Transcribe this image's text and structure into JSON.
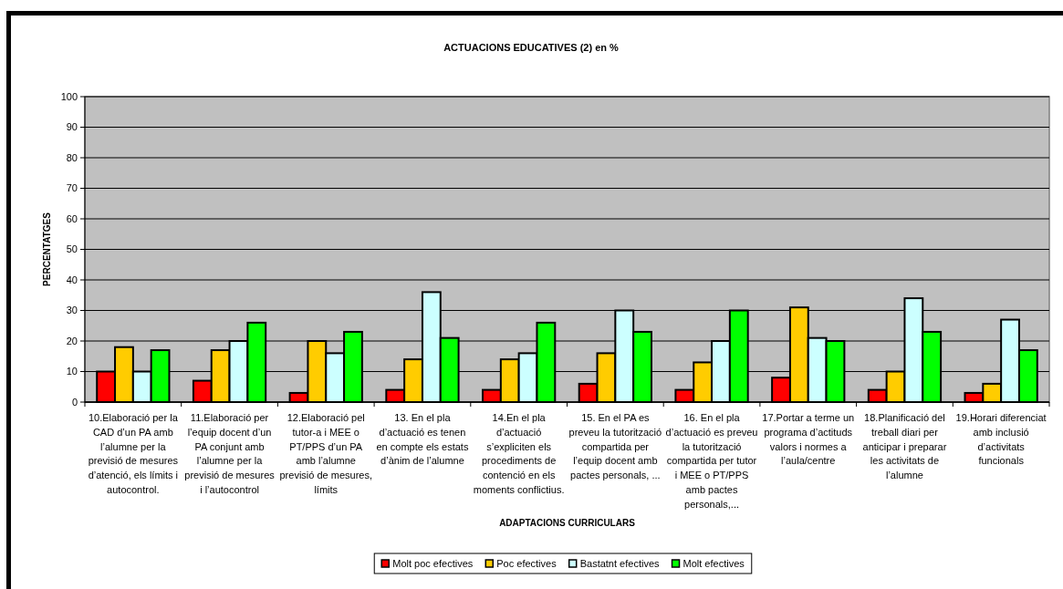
{
  "chart_data": {
    "type": "bar",
    "title": "ACTUACIONS EDUCATIVES (2) en %",
    "xlabel": "ADAPTACIONS CURRICULARS",
    "ylabel": "PERCENTATGES",
    "categories": [
      "10.Elaboració per la CAD d’un PA amb l’alumne per la previsió de mesures d’atenció, els límits i autocontrol.",
      "11.Elaboració per l’equip docent d’un PA conjunt amb l’alumne per la previsió de mesures i l’autocontrol",
      "12.Elaboració pel tutor-a i MEE o PT/PPS d’un PA amb l’alumne previsió de mesures, límits",
      "13. En el pla d’actuació es tenen en compte els estats d’ànim de l’alumne",
      "14.En el pla d’actuació s’expliciten els procediments de contenció en els moments conflictius.",
      "15. En el PA es preveu la tutorització compartida per l’equip docent amb pactes personals, ...",
      "16. En el pla d’actuació es preveu la tutorització compartida per tutor i MEE o PT/PPS amb pactes personals,...",
      "17.Portar a terme un programa d’actituds valors i normes a l’aula/centre",
      "18.Planificació del treball diari per anticipar i preparar les activitats de l’alumne",
      "19.Horari diferenciat amb inclusió d’activitats funcionals"
    ],
    "series": [
      {
        "name": "Molt poc efectives",
        "color": "#ff0000",
        "values": [
          10,
          7,
          3,
          4,
          4,
          6,
          4,
          8,
          4,
          3
        ]
      },
      {
        "name": "Poc efectives",
        "color": "#ffcc00",
        "values": [
          18,
          17,
          20,
          14,
          14,
          16,
          13,
          31,
          10,
          6
        ]
      },
      {
        "name": "Bastatnt efectives",
        "color": "#ccffff",
        "values": [
          10,
          20,
          16,
          36,
          16,
          30,
          20,
          21,
          34,
          27
        ]
      },
      {
        "name": "Molt efectives",
        "color": "#00ff00",
        "values": [
          17,
          26,
          23,
          21,
          26,
          23,
          30,
          20,
          23,
          17
        ]
      }
    ],
    "ylim": [
      0,
      100
    ],
    "yticks": [
      0,
      10,
      20,
      30,
      40,
      50,
      60,
      70,
      80,
      90,
      100
    ],
    "grid": "y",
    "legend": "bottom"
  }
}
